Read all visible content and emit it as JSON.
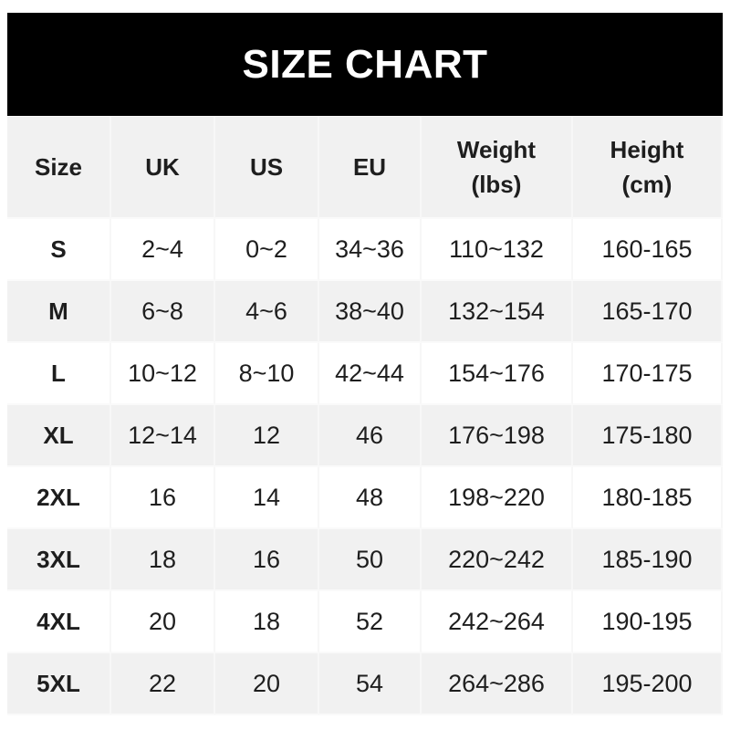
{
  "title": "SIZE CHART",
  "headers": [
    {
      "line1": "Size",
      "line2": ""
    },
    {
      "line1": "UK",
      "line2": ""
    },
    {
      "line1": "US",
      "line2": ""
    },
    {
      "line1": "EU",
      "line2": ""
    },
    {
      "line1": "Weight",
      "line2": "(lbs)"
    },
    {
      "line1": "Height",
      "line2": "(cm)"
    }
  ],
  "rows": [
    [
      "S",
      "2~4",
      "0~2",
      "34~36",
      "110~132",
      "160-165"
    ],
    [
      "M",
      "6~8",
      "4~6",
      "38~40",
      "132~154",
      "165-170"
    ],
    [
      "L",
      "10~12",
      "8~10",
      "42~44",
      "154~176",
      "170-175"
    ],
    [
      "XL",
      "12~14",
      "12",
      "46",
      "176~198",
      "175-180"
    ],
    [
      "2XL",
      "16",
      "14",
      "48",
      "198~220",
      "180-185"
    ],
    [
      "3XL",
      "18",
      "16",
      "50",
      "220~242",
      "185-190"
    ],
    [
      "4XL",
      "20",
      "18",
      "52",
      "242~264",
      "190-195"
    ],
    [
      "5XL",
      "22",
      "20",
      "54",
      "264~286",
      "195-200"
    ]
  ]
}
